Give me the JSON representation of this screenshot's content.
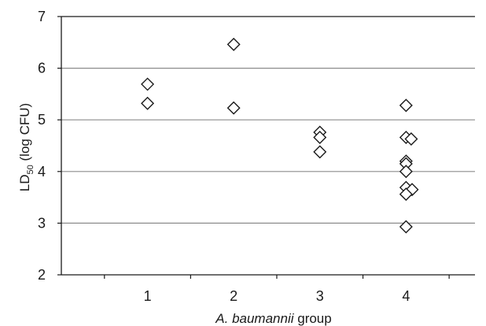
{
  "chart_data": {
    "type": "scatter",
    "title": "",
    "xlabel_italic": "A. baumannii",
    "xlabel_rest": " group",
    "ylabel_main": "LD",
    "ylabel_sub": "50",
    "ylabel_rest": " (log CFU)",
    "xlim": [
      0,
      4.8
    ],
    "ylim": [
      2,
      7
    ],
    "x_ticks": [
      1,
      2,
      3,
      4
    ],
    "x_tick_labels": [
      "1",
      "2",
      "3",
      "4"
    ],
    "y_ticks": [
      2,
      3,
      4,
      5,
      6,
      7
    ],
    "y_tick_labels": [
      "2",
      "3",
      "4",
      "5",
      "6",
      "7"
    ],
    "grid": "horizontal",
    "legend": "none",
    "marker": "open-diamond",
    "points": [
      {
        "x": 1,
        "y": 5.69
      },
      {
        "x": 1,
        "y": 5.32
      },
      {
        "x": 2,
        "y": 6.46
      },
      {
        "x": 2,
        "y": 5.23
      },
      {
        "x": 3,
        "y": 4.76
      },
      {
        "x": 3,
        "y": 4.66
      },
      {
        "x": 3,
        "y": 4.38
      },
      {
        "x": 4,
        "y": 5.28
      },
      {
        "x": 4,
        "y": 4.66
      },
      {
        "x": 4.06,
        "y": 4.63
      },
      {
        "x": 4,
        "y": 4.2
      },
      {
        "x": 4,
        "y": 4.15
      },
      {
        "x": 4,
        "y": 4.0
      },
      {
        "x": 4,
        "y": 3.69
      },
      {
        "x": 4.07,
        "y": 3.65
      },
      {
        "x": 4,
        "y": 3.56
      },
      {
        "x": 4,
        "y": 2.93
      }
    ]
  }
}
